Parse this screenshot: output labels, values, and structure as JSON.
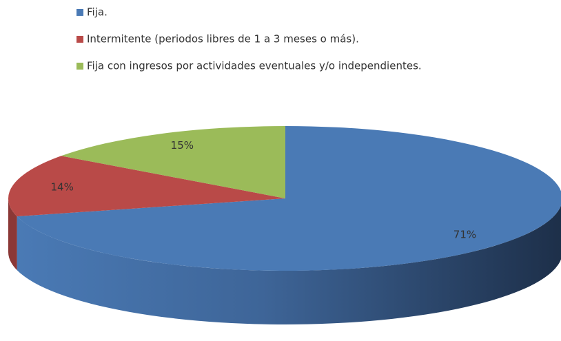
{
  "chart_data": {
    "type": "pie3d",
    "categories": [
      "Fija.",
      "Intermitente (periodos libres de 1 a 3 meses o más).",
      "Fija con ingresos por actividades eventuales y/o independientes."
    ],
    "values": [
      71,
      14,
      15
    ],
    "value_labels": [
      "71%",
      "14%",
      "15%"
    ],
    "colors": [
      "#4a7ab5",
      "#b94a48",
      "#9bbb59"
    ],
    "legend": "top"
  }
}
